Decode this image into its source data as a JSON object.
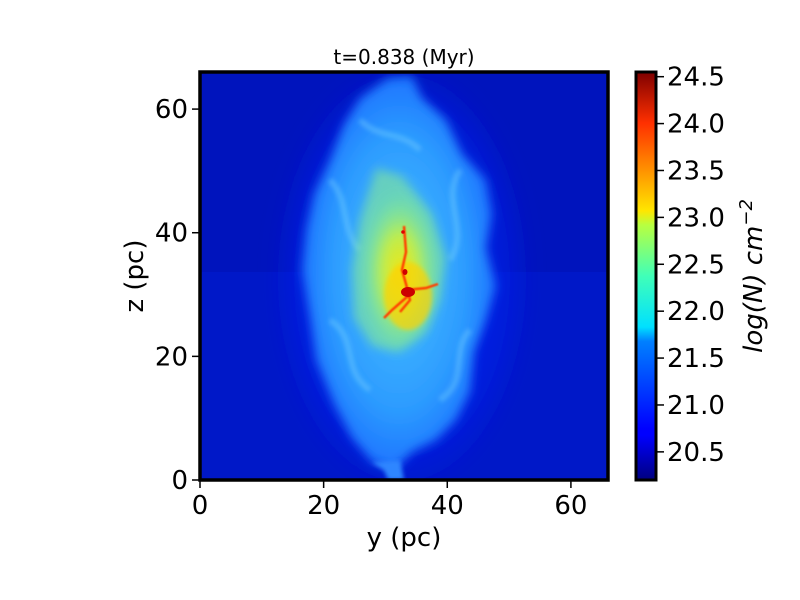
{
  "chart_data": {
    "type": "heatmap",
    "title": "t=0.838 (Myr)",
    "xlabel": "y (pc)",
    "ylabel": "z (pc)",
    "xlim": [
      0,
      66
    ],
    "ylim": [
      0,
      66
    ],
    "xticks": [
      0,
      20,
      40,
      60
    ],
    "yticks": [
      0,
      20,
      40,
      60
    ],
    "colorbar": {
      "label": "log(N) cm^-2",
      "label_base": "log(N) cm",
      "label_exponent": "−2",
      "range": [
        20.2,
        24.55
      ],
      "ticks": [
        20.5,
        21.0,
        21.5,
        22.0,
        22.5,
        23.0,
        23.5,
        24.0,
        24.5
      ],
      "tick_labels": [
        "20.5",
        "21.0",
        "21.5",
        "22.0",
        "22.5",
        "23.0",
        "23.5",
        "24.0",
        "24.5"
      ],
      "colormap": "jet"
    },
    "background_value": 20.5,
    "structures": [
      {
        "name": "cloud envelope",
        "log_N": 21.6
      },
      {
        "name": "dense filament",
        "log_N": 22.8
      },
      {
        "name": "core",
        "log_N": 24.3,
        "center": [
          34,
          31
        ]
      }
    ],
    "grid": false
  }
}
